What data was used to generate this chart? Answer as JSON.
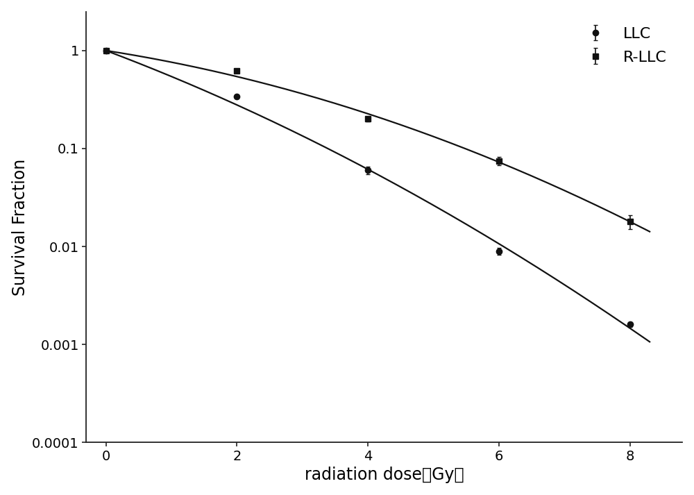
{
  "title": "",
  "xlabel": "radiation dose（Gy）",
  "ylabel": "Survival Fraction",
  "xlim": [
    -0.3,
    8.8
  ],
  "ylim": [
    0.0001,
    2.5
  ],
  "x_ticks": [
    0,
    2,
    4,
    6,
    8
  ],
  "llc": {
    "label": "LLC",
    "x": [
      0,
      2,
      4,
      6,
      8
    ],
    "y": [
      1.0,
      0.34,
      0.06,
      0.009,
      0.0016
    ],
    "yerr": [
      0.0,
      0.018,
      0.005,
      0.0007,
      0.0001
    ],
    "marker": "o",
    "color": "#111111",
    "markersize": 6
  },
  "rllc": {
    "label": "R-LLC",
    "x": [
      0,
      2,
      4,
      6,
      8
    ],
    "y": [
      1.0,
      0.62,
      0.2,
      0.075,
      0.018
    ],
    "yerr": [
      0.0,
      0.025,
      0.012,
      0.007,
      0.003
    ],
    "marker": "s",
    "color": "#111111",
    "markersize": 6
  },
  "background_color": "#ffffff",
  "line_color": "#111111",
  "line_width": 1.6,
  "fontsize_label": 17,
  "fontsize_tick": 14,
  "fontsize_legend": 16
}
